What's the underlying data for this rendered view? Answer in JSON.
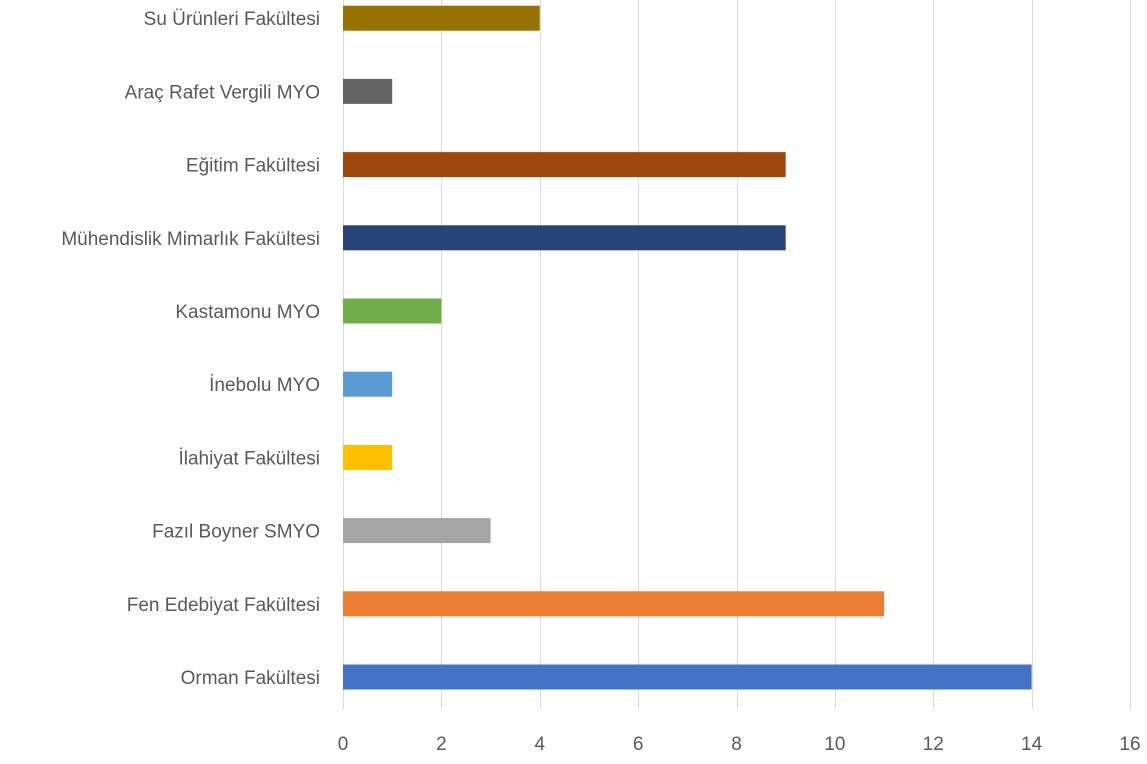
{
  "chart_data": {
    "type": "bar",
    "orientation": "horizontal",
    "title": "",
    "xlabel": "",
    "ylabel": "",
    "xlim": [
      0,
      16
    ],
    "ticks": [
      0,
      2,
      4,
      6,
      8,
      10,
      12,
      14,
      16
    ],
    "grid": true,
    "legend": "none",
    "categories": [
      "Orman Fakültesi",
      "Fen Edebiyat Fakültesi",
      "Fazıl Boyner SMYO",
      "İlahiyat Fakültesi",
      "İnebolu MYO",
      "Kastamonu MYO",
      "Mühendislik Mimarlık Fakültesi",
      "Eğitim Fakültesi",
      "Araç Rafet Vergili MYO",
      "Su Ürünleri Fakültesi"
    ],
    "values": [
      14,
      11,
      3,
      1,
      1,
      2,
      9,
      9,
      1,
      4
    ],
    "colors": [
      "#4472c4",
      "#ed7d31",
      "#a5a5a5",
      "#ffc000",
      "#5b9bd5",
      "#70ad47",
      "#264478",
      "#9e480e",
      "#636363",
      "#997300"
    ]
  }
}
